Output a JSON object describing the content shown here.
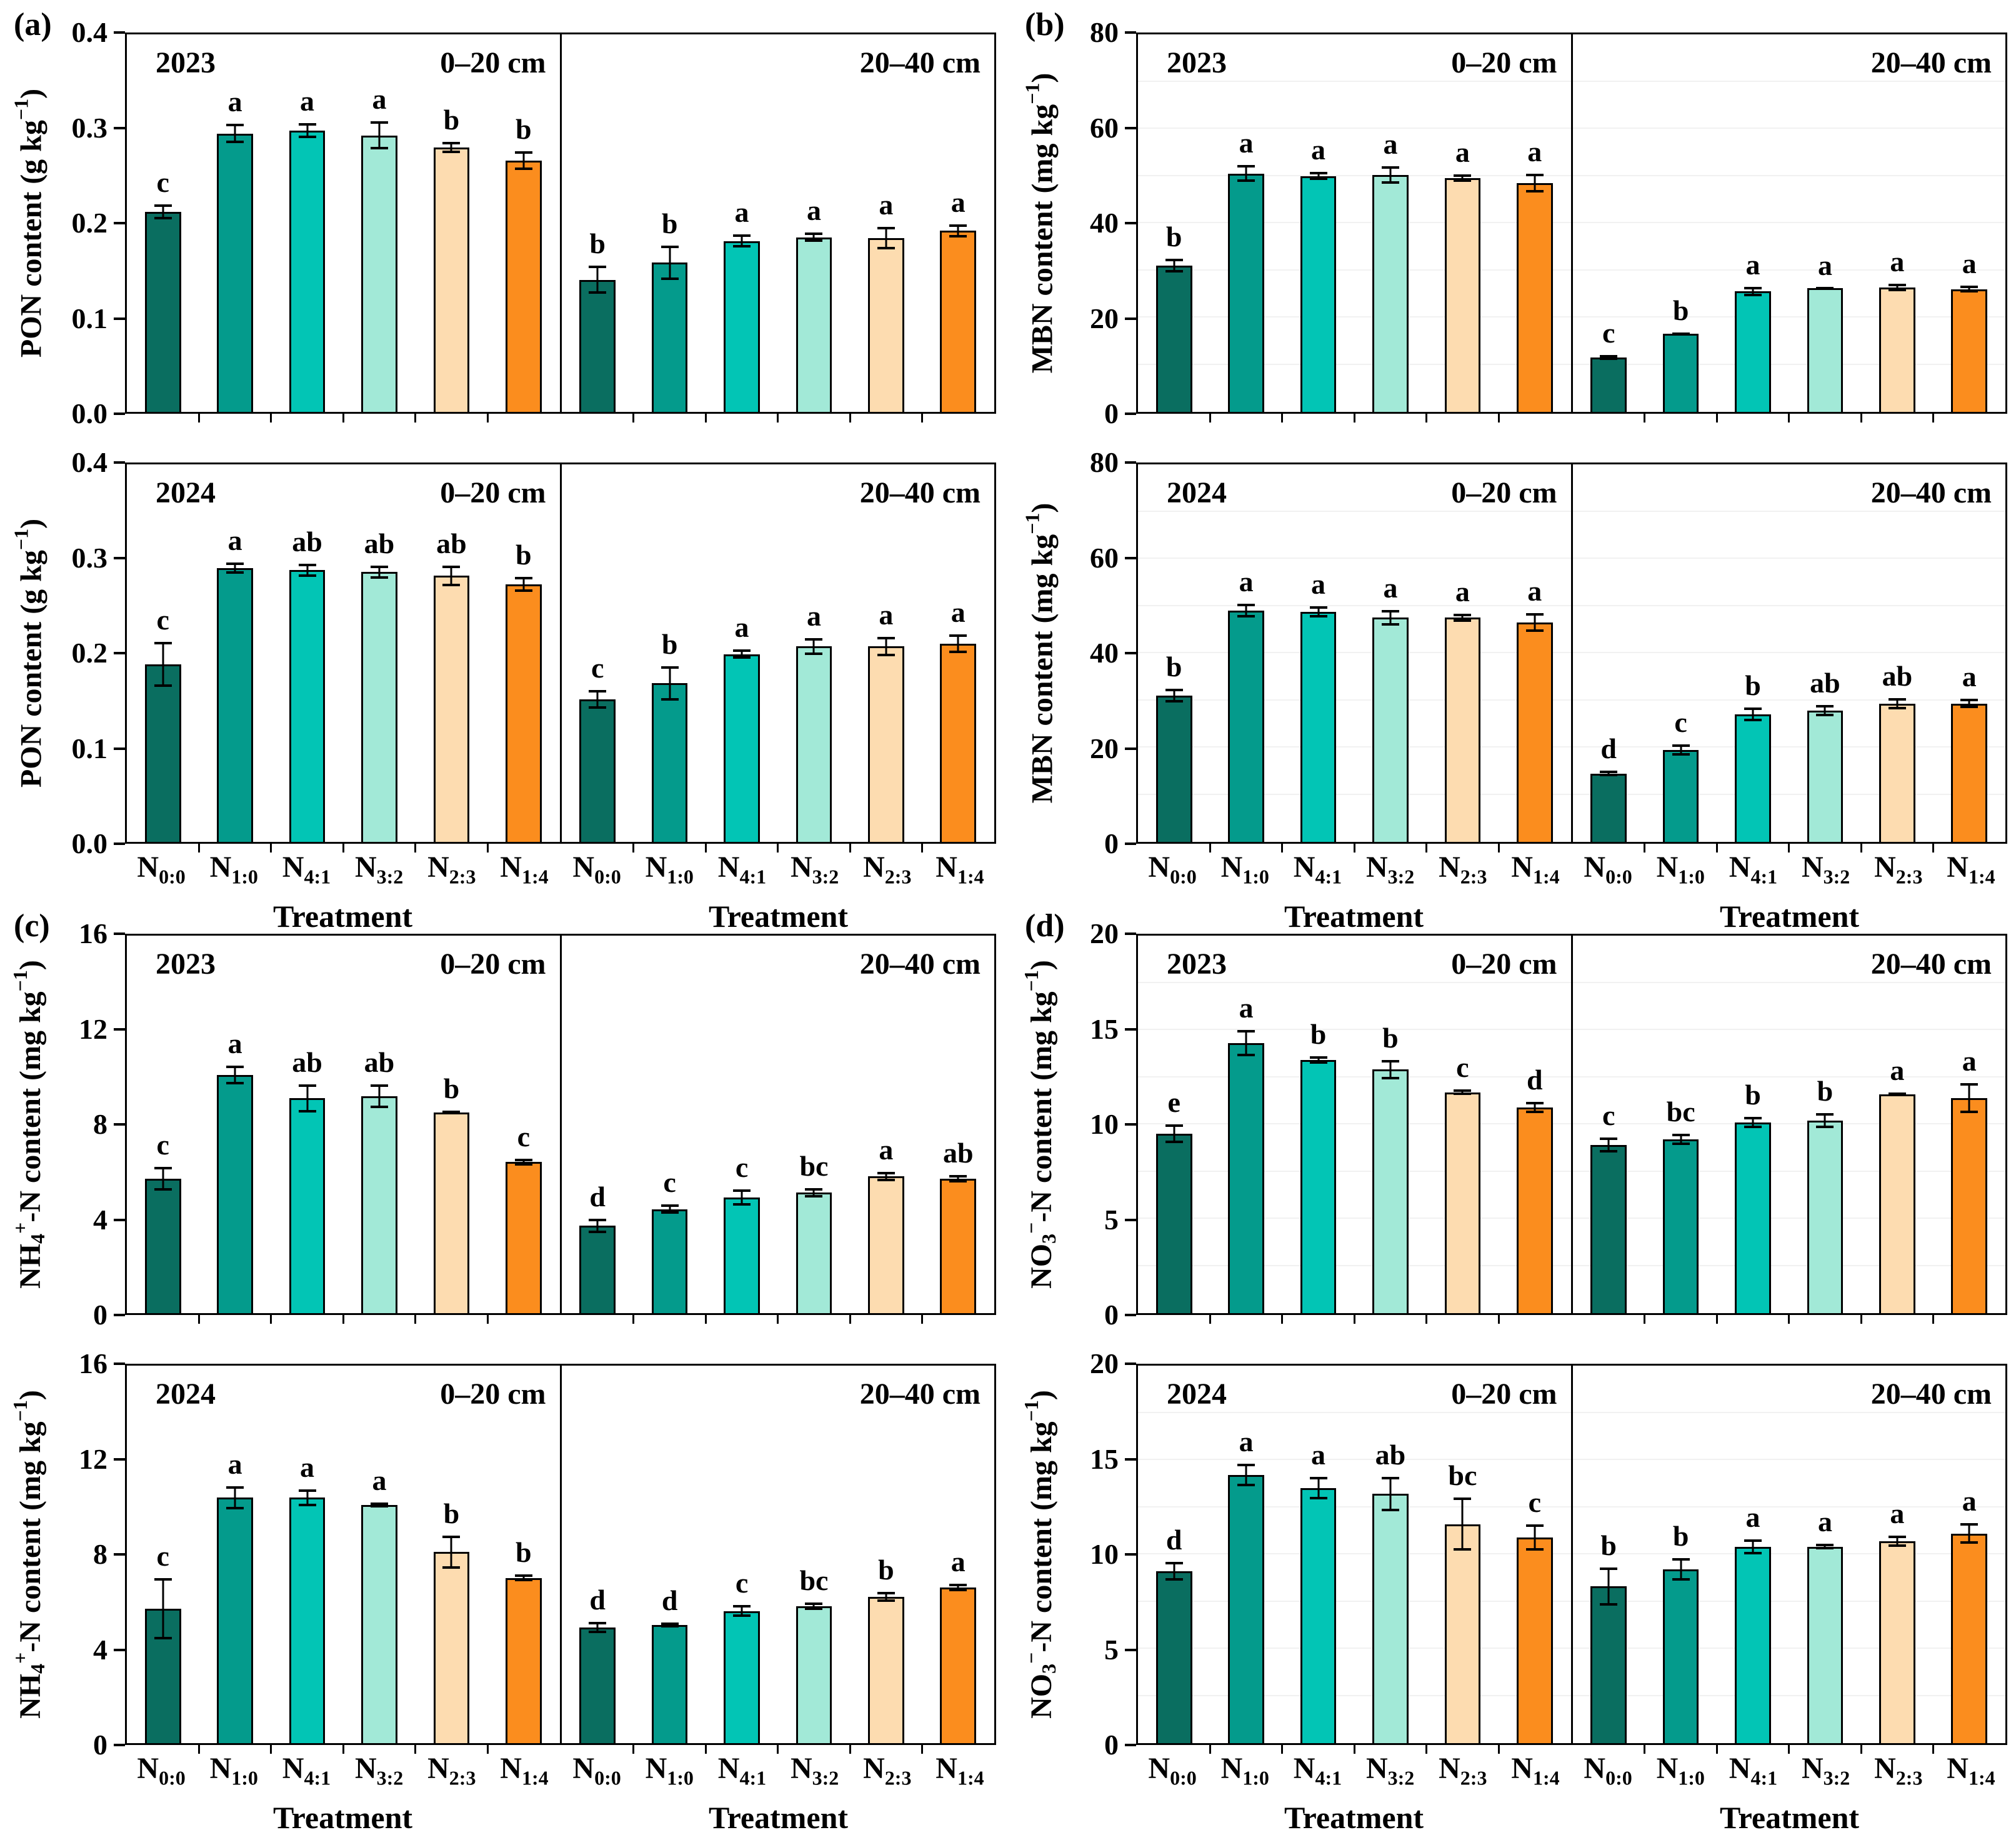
{
  "figure": {
    "xlabel": "Treatment",
    "treatment_base": "N",
    "treatment_subs": [
      "0:0",
      "1:0",
      "4:1",
      "3:2",
      "2:3",
      "1:4"
    ],
    "bar_colors": [
      "#0A6E60",
      "#049B8C",
      "#02C5B5",
      "#A2E9D7",
      "#FDDCB0",
      "#FB8D1E"
    ],
    "outline_color": "#000000",
    "years": [
      "2023",
      "2024"
    ],
    "depths": [
      "0–20 cm",
      "20–40 cm"
    ]
  },
  "chart_data": [
    {
      "id": "a",
      "panel": "(a)",
      "type": "bar",
      "categories": [
        "N0:0",
        "N1:0",
        "N4:1",
        "N3:2",
        "N2:3",
        "N1:4"
      ],
      "ylabel": "PON content (g kg−1)",
      "ylabel_parts": [
        {
          "t": "PON content (g kg"
        },
        {
          "sup": "−1"
        },
        {
          "t": ")"
        }
      ],
      "ylim": [
        0,
        0.4
      ],
      "yticks": [
        "0.0",
        "0.1",
        "0.2",
        "0.3",
        "0.4"
      ],
      "grid": false,
      "subplots": [
        {
          "year": "2023",
          "depth": "0–20 cm",
          "values": [
            0.212,
            0.295,
            0.298,
            0.293,
            0.28,
            0.266
          ],
          "errors": [
            0.008,
            0.01,
            0.008,
            0.015,
            0.006,
            0.01
          ],
          "letters": [
            "c",
            "a",
            "a",
            "a",
            "b",
            "b"
          ]
        },
        {
          "year": "",
          "depth": "20–40 cm",
          "values": [
            0.14,
            0.158,
            0.181,
            0.185,
            0.184,
            0.192
          ],
          "errors": [
            0.015,
            0.018,
            0.007,
            0.005,
            0.012,
            0.007
          ],
          "letters": [
            "b",
            "b",
            "a",
            "a",
            "a",
            "a"
          ]
        },
        {
          "year": "2024",
          "depth": "0–20 cm",
          "values": [
            0.188,
            0.29,
            0.288,
            0.286,
            0.282,
            0.273
          ],
          "errors": [
            0.024,
            0.006,
            0.007,
            0.007,
            0.011,
            0.008
          ],
          "letters": [
            "c",
            "a",
            "ab",
            "ab",
            "ab",
            "b"
          ]
        },
        {
          "year": "",
          "depth": "20–40 cm",
          "values": [
            0.151,
            0.168,
            0.199,
            0.207,
            0.207,
            0.21
          ],
          "errors": [
            0.01,
            0.018,
            0.005,
            0.009,
            0.01,
            0.01
          ],
          "letters": [
            "c",
            "b",
            "a",
            "a",
            "a",
            "a"
          ]
        }
      ]
    },
    {
      "id": "b",
      "panel": "(b)",
      "type": "bar",
      "categories": [
        "N0:0",
        "N1:0",
        "N4:1",
        "N3:2",
        "N2:3",
        "N1:4"
      ],
      "ylabel": "MBN content (mg kg−1)",
      "ylabel_parts": [
        {
          "t": "MBN content (mg kg"
        },
        {
          "sup": "−1"
        },
        {
          "t": ")"
        }
      ],
      "ylim": [
        0,
        80
      ],
      "yticks": [
        "0",
        "20",
        "40",
        "60",
        "80"
      ],
      "grid": true,
      "subplots": [
        {
          "year": "2023",
          "depth": "0–20 cm",
          "values": [
            31.0,
            50.5,
            50.0,
            50.2,
            49.5,
            48.5
          ],
          "errors": [
            1.5,
            1.8,
            0.8,
            1.8,
            0.8,
            2.0
          ],
          "letters": [
            "b",
            "a",
            "a",
            "a",
            "a",
            "a"
          ]
        },
        {
          "year": "",
          "depth": "20–40 cm",
          "values": [
            11.5,
            16.5,
            25.5,
            26.2,
            26.4,
            26.0
          ],
          "errors": [
            0.5,
            0.3,
            1.0,
            0.2,
            0.8,
            0.7
          ],
          "letters": [
            "c",
            "b",
            "a",
            "a",
            "a",
            "a"
          ]
        },
        {
          "year": "2024",
          "depth": "0–20 cm",
          "values": [
            31.0,
            49.0,
            48.8,
            47.5,
            47.5,
            46.5
          ],
          "errors": [
            1.5,
            1.5,
            1.2,
            1.7,
            0.9,
            2.0
          ],
          "letters": [
            "b",
            "a",
            "a",
            "a",
            "a",
            "a"
          ]
        },
        {
          "year": "",
          "depth": "20–40 cm",
          "values": [
            14.5,
            19.5,
            27.0,
            27.8,
            29.3,
            29.3
          ],
          "errors": [
            0.6,
            1.2,
            1.5,
            1.2,
            1.2,
            1.0
          ],
          "letters": [
            "d",
            "c",
            "b",
            "ab",
            "ab",
            "a"
          ]
        }
      ]
    },
    {
      "id": "c",
      "panel": "(c)",
      "type": "bar",
      "categories": [
        "N0:0",
        "N1:0",
        "N4:1",
        "N3:2",
        "N2:3",
        "N1:4"
      ],
      "ylabel": "NH4+-N content (mg kg−1)",
      "ylabel_parts": [
        {
          "t": "NH"
        },
        {
          "sub": "4"
        },
        {
          "sup": "+"
        },
        {
          "t": "-N content (mg kg"
        },
        {
          "sup": "−1"
        },
        {
          "t": ")"
        }
      ],
      "ylim": [
        0,
        16
      ],
      "yticks": [
        "0",
        "4",
        "8",
        "12",
        "16"
      ],
      "grid": false,
      "subplots": [
        {
          "year": "2023",
          "depth": "0–20 cm",
          "values": [
            5.7,
            10.1,
            9.1,
            9.2,
            8.5,
            6.4
          ],
          "errors": [
            0.5,
            0.4,
            0.6,
            0.5,
            0.08,
            0.15
          ],
          "letters": [
            "c",
            "a",
            "ab",
            "ab",
            "b",
            "c"
          ]
        },
        {
          "year": "",
          "depth": "20–40 cm",
          "values": [
            3.7,
            4.4,
            4.9,
            5.1,
            5.8,
            5.7
          ],
          "errors": [
            0.3,
            0.2,
            0.35,
            0.2,
            0.2,
            0.15
          ],
          "letters": [
            "d",
            "c",
            "c",
            "bc",
            "a",
            "ab"
          ]
        },
        {
          "year": "2024",
          "depth": "0–20 cm",
          "values": [
            5.7,
            10.4,
            10.4,
            10.1,
            8.1,
            7.0
          ],
          "errors": [
            1.3,
            0.5,
            0.35,
            0.1,
            0.7,
            0.15
          ],
          "letters": [
            "c",
            "a",
            "a",
            "a",
            "b",
            "b"
          ]
        },
        {
          "year": "",
          "depth": "20–40 cm",
          "values": [
            4.9,
            5.0,
            5.6,
            5.8,
            6.2,
            6.6
          ],
          "errors": [
            0.25,
            0.1,
            0.25,
            0.15,
            0.2,
            0.15
          ],
          "letters": [
            "d",
            "d",
            "c",
            "bc",
            "b",
            "a"
          ]
        }
      ]
    },
    {
      "id": "d",
      "panel": "(d)",
      "type": "bar",
      "categories": [
        "N0:0",
        "N1:0",
        "N4:1",
        "N3:2",
        "N2:3",
        "N1:4"
      ],
      "ylabel": "NO3--N content (mg kg−1)",
      "ylabel_parts": [
        {
          "t": "NO"
        },
        {
          "sub": "3"
        },
        {
          "sup": "−"
        },
        {
          "t": "-N content (mg kg"
        },
        {
          "sup": "−1"
        },
        {
          "t": ")"
        }
      ],
      "ylim": [
        0,
        20
      ],
      "yticks": [
        "0",
        "5",
        "10",
        "15",
        "20"
      ],
      "grid": true,
      "subplots": [
        {
          "year": "2023",
          "depth": "0–20 cm",
          "values": [
            9.5,
            14.3,
            13.4,
            12.9,
            11.7,
            10.9
          ],
          "errors": [
            0.5,
            0.7,
            0.2,
            0.5,
            0.15,
            0.3
          ],
          "letters": [
            "e",
            "a",
            "b",
            "b",
            "c",
            "d"
          ]
        },
        {
          "year": "",
          "depth": "20–40 cm",
          "values": [
            8.9,
            9.2,
            10.1,
            10.2,
            11.6,
            11.4
          ],
          "errors": [
            0.4,
            0.3,
            0.3,
            0.4,
            0.08,
            0.8
          ],
          "letters": [
            "c",
            "bc",
            "b",
            "b",
            "a",
            "a"
          ]
        },
        {
          "year": "2024",
          "depth": "0–20 cm",
          "values": [
            9.1,
            14.2,
            13.5,
            13.2,
            11.6,
            10.9
          ],
          "errors": [
            0.5,
            0.6,
            0.6,
            0.9,
            1.4,
            0.7
          ],
          "letters": [
            "d",
            "a",
            "a",
            "ab",
            "bc",
            "c"
          ]
        },
        {
          "year": "",
          "depth": "20–40 cm",
          "values": [
            8.3,
            9.2,
            10.4,
            10.4,
            10.7,
            11.1
          ],
          "errors": [
            1.0,
            0.6,
            0.4,
            0.15,
            0.3,
            0.55
          ],
          "letters": [
            "b",
            "b",
            "a",
            "a",
            "a",
            "a"
          ]
        }
      ]
    }
  ]
}
